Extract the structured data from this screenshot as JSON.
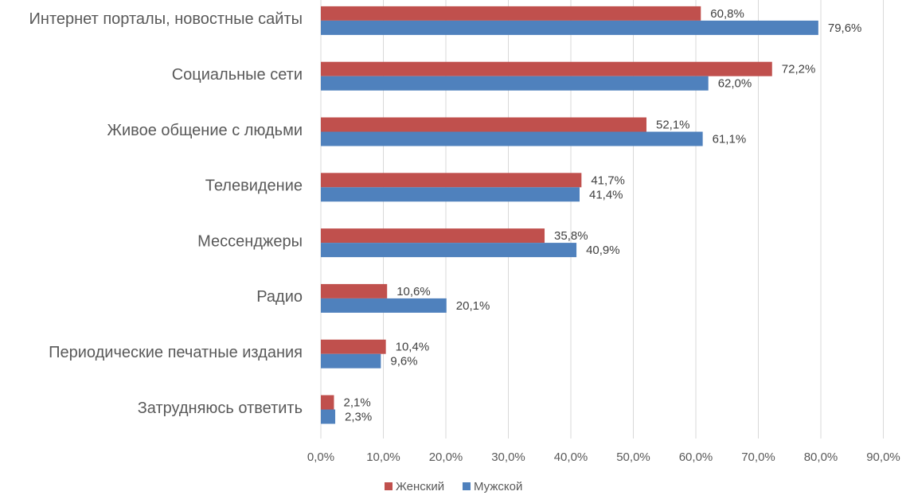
{
  "chart_data": {
    "type": "bar",
    "orientation": "horizontal",
    "categories": [
      "Интернет порталы, новостные сайты",
      "Социальные сети",
      "Живое общение с людьми",
      "Телевидение",
      "Мессенджеры",
      "Радио",
      "Периодические печатные издания",
      "Затрудняюсь ответить"
    ],
    "series": [
      {
        "name": "Женский",
        "color": "#c0504d",
        "values": [
          60.8,
          72.2,
          52.1,
          41.7,
          35.8,
          10.6,
          10.4,
          2.1
        ],
        "labels": [
          "60,8%",
          "72,2%",
          "52,1%",
          "41,7%",
          "35,8%",
          "10,6%",
          "10,4%",
          "2,1%"
        ]
      },
      {
        "name": "Мужской",
        "color": "#4f81bd",
        "values": [
          79.6,
          62.0,
          61.1,
          41.4,
          40.9,
          20.1,
          9.6,
          2.3
        ],
        "labels": [
          "79,6%",
          "62,0%",
          "61,1%",
          "41,4%",
          "40,9%",
          "20,1%",
          "9,6%",
          "2,3%"
        ]
      }
    ],
    "xlim": [
      0,
      90
    ],
    "x_ticks": [
      "0,0%",
      "10,0%",
      "20,0%",
      "30,0%",
      "40,0%",
      "50,0%",
      "60,0%",
      "70,0%",
      "80,0%",
      "90,0%"
    ],
    "grid": true,
    "legend": "bottom",
    "title": "",
    "xlabel": "",
    "ylabel": ""
  }
}
